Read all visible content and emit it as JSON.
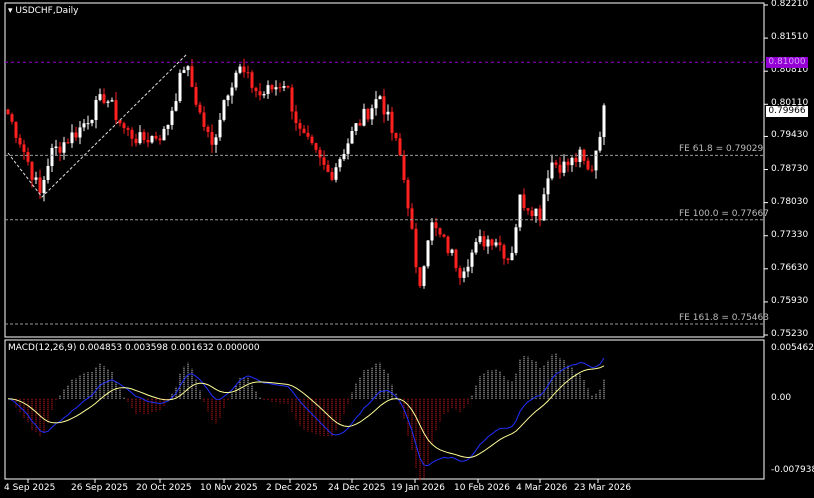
{
  "symbol_title": "USDCHF,Daily",
  "price_axis": [
    "0.82210",
    "0.81510",
    "0.80810",
    "0.80110",
    "0.79430",
    "0.78730",
    "0.78030",
    "0.77330",
    "0.76630",
    "0.75930",
    "0.75230"
  ],
  "current_price": "0.79966",
  "alert_price": "0.81000",
  "colors": {
    "bull": "#ffffff",
    "bear": "#ff2020",
    "alert": "#9400d3",
    "signal": "#ffff99",
    "macd_line": "#2030ff",
    "grid_level": "#aaaaaa"
  },
  "fe_levels": [
    {
      "label": "FE 61.8 = 0.79029",
      "price": 0.79029
    },
    {
      "label": "FE 100.0 = 0.77667",
      "price": 0.77667
    },
    {
      "label": "FE 161.8 = 0.75463",
      "price": 0.75463
    }
  ],
  "macd": {
    "label": "MACD(12,26,9) 0.004853 0.003598 0.001632 0.000000",
    "axis": [
      "0.005462",
      "0.00",
      "-0.007938"
    ]
  },
  "time_axis": [
    "4 Sep 2025",
    "26 Sep 2025",
    "20 Oct 2025",
    "10 Nov 2025",
    "2 Dec 2025",
    "24 Dec 2025",
    "19 Jan 2026",
    "10 Feb 2026",
    "4 Mar 2026",
    "23 Mar 2026"
  ],
  "price_path": [
    0.7995,
    0.7935,
    0.782,
    0.7905,
    0.796,
    0.803,
    0.7955,
    0.7935,
    0.795,
    0.81,
    0.799,
    0.792,
    0.803,
    0.809,
    0.803,
    0.806,
    0.795,
    0.786,
    0.796,
    0.803,
    0.79,
    0.778,
    0.761,
    0.776,
    0.77,
    0.766,
    0.772,
    0.773,
    0.768,
    0.781,
    0.778,
    0.789,
    0.788,
    0.79,
    0.786,
    0.8005
  ]
}
